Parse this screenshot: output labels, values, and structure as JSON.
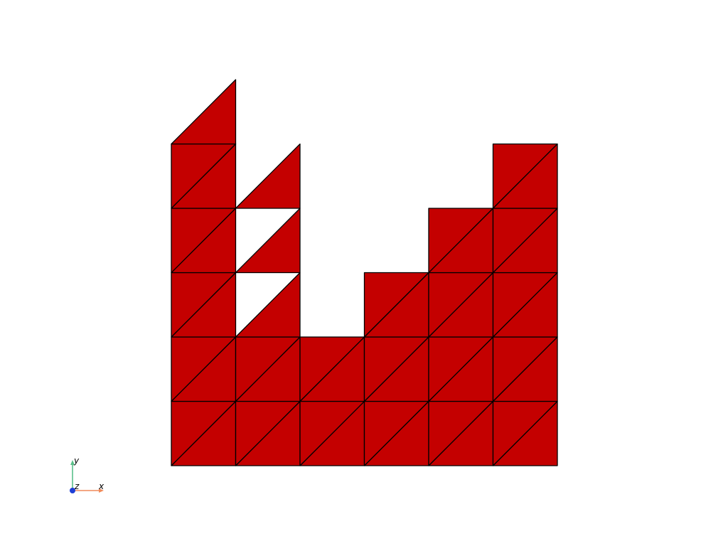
{
  "mesh": {
    "fill_color": "#c40000",
    "edge_color": "#000000",
    "grid_columns": 6,
    "grid_rows": 6,
    "cells": [
      [
        0,
        0,
        "full"
      ],
      [
        1,
        0,
        "full"
      ],
      [
        2,
        0,
        "full"
      ],
      [
        3,
        0,
        "full"
      ],
      [
        4,
        0,
        "full"
      ],
      [
        5,
        0,
        "full"
      ],
      [
        0,
        1,
        "full"
      ],
      [
        1,
        1,
        "full"
      ],
      [
        2,
        1,
        "full"
      ],
      [
        3,
        1,
        "full"
      ],
      [
        4,
        1,
        "full"
      ],
      [
        5,
        1,
        "full"
      ],
      [
        0,
        2,
        "full"
      ],
      [
        1,
        2,
        "lower"
      ],
      [
        3,
        2,
        "full"
      ],
      [
        4,
        2,
        "full"
      ],
      [
        5,
        2,
        "full"
      ],
      [
        0,
        3,
        "full"
      ],
      [
        1,
        3,
        "lower"
      ],
      [
        4,
        3,
        "full"
      ],
      [
        5,
        3,
        "full"
      ],
      [
        0,
        4,
        "full"
      ],
      [
        1,
        4,
        "lower"
      ],
      [
        5,
        4,
        "full"
      ],
      [
        0,
        5,
        "lower"
      ]
    ]
  },
  "axes_triad": {
    "x_label": "x",
    "y_label": "y",
    "z_label": "z",
    "x_color": "#f08a5a",
    "y_color": "#5ac08a",
    "z_color": "#1f3fd6"
  }
}
